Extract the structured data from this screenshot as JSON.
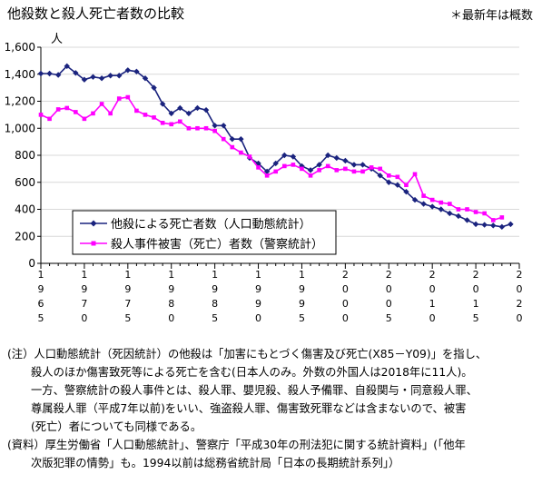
{
  "title": "他殺数と殺人死亡者数の比較",
  "note_estimate": "＊最新年は概数",
  "notes": {
    "note_lines": [
      "(注）人口動態統計（死因統計）の他殺は「加害にもとづく傷害及び死亡(X85－Y09)」を指し、",
      "殺人のほか傷害致死等による死亡を含む(日本人のみ。外数の外国人は2018年に11人)。",
      "一方、警察統計の殺人事件とは、殺人罪、嬰児殺、殺人予備罪、自殺関与・同意殺人罪、",
      "尊属殺人罪（平成7年以前)をいい、強盗殺人罪、傷害致死罪などは含まないので、被害",
      "(死亡）者についても同様である。"
    ],
    "source_lines": [
      "(資料）厚生労働省「人口動態統計」、警察庁「平成30年の刑法犯に関する統計資料」(「他年",
      "次版犯罪の情勢」も。1994以前は総務省統計局「日本の長期統計系列」）"
    ]
  },
  "colors": {
    "series1": "#1a237e",
    "series2": "#ff00ff"
  },
  "chart_data": {
    "type": "line",
    "title": "他殺数と殺人死亡者数の比較",
    "ylabel": "人",
    "xlabel": "",
    "ylim": [
      0,
      1600
    ],
    "yticks": [
      "0",
      "200",
      "400",
      "600",
      "800",
      "1,000",
      "1,200",
      "1,400",
      "1,600"
    ],
    "xlim": [
      1965,
      2020
    ],
    "xtick_labels": [
      {
        "year": 1965,
        "label": "1965"
      },
      {
        "year": 1970,
        "label": "1970"
      },
      {
        "year": 1975,
        "label": "1975"
      },
      {
        "year": 1980,
        "label": "1980"
      },
      {
        "year": 1985,
        "label": "1985"
      },
      {
        "year": 1990,
        "label": "1990"
      },
      {
        "year": 1995,
        "label": "1995"
      },
      {
        "year": 2000,
        "label": "2000"
      },
      {
        "year": 2005,
        "label": "2005"
      },
      {
        "year": 2010,
        "label": "2010"
      },
      {
        "year": 2015,
        "label": "2015"
      },
      {
        "year": 2020,
        "label": "2020"
      }
    ],
    "grid": "horizontal",
    "legend_position": "bottom-left",
    "series": [
      {
        "name": "他殺による死亡者数（人口動態統計）",
        "color": "#1a237e",
        "marker": "diamond",
        "x": [
          1965,
          1966,
          1967,
          1968,
          1969,
          1970,
          1971,
          1972,
          1973,
          1974,
          1975,
          1976,
          1977,
          1978,
          1979,
          1980,
          1981,
          1982,
          1983,
          1984,
          1985,
          1986,
          1987,
          1988,
          1989,
          1990,
          1991,
          1992,
          1993,
          1994,
          1995,
          1996,
          1997,
          1998,
          1999,
          2000,
          2001,
          2002,
          2003,
          2004,
          2005,
          2006,
          2007,
          2008,
          2009,
          2010,
          2011,
          2012,
          2013,
          2014,
          2015,
          2016,
          2017,
          2018,
          2019
        ],
        "values": [
          1405,
          1405,
          1395,
          1460,
          1410,
          1360,
          1380,
          1370,
          1390,
          1390,
          1430,
          1420,
          1370,
          1300,
          1180,
          1110,
          1150,
          1110,
          1150,
          1135,
          1020,
          1020,
          920,
          920,
          780,
          740,
          680,
          740,
          800,
          790,
          720,
          690,
          730,
          800,
          780,
          760,
          730,
          730,
          700,
          650,
          600,
          580,
          530,
          470,
          440,
          420,
          400,
          370,
          350,
          320,
          290,
          285,
          280,
          270,
          290
        ]
      },
      {
        "name": "殺人事件被害（死亡）者数（警察統計）",
        "color": "#ff00ff",
        "marker": "square",
        "x": [
          1965,
          1966,
          1967,
          1968,
          1969,
          1970,
          1971,
          1972,
          1973,
          1974,
          1975,
          1976,
          1977,
          1978,
          1979,
          1980,
          1981,
          1982,
          1983,
          1984,
          1985,
          1986,
          1987,
          1988,
          1989,
          1990,
          1991,
          1992,
          1993,
          1994,
          1995,
          1996,
          1997,
          1998,
          1999,
          2000,
          2001,
          2002,
          2003,
          2004,
          2005,
          2006,
          2007,
          2008,
          2009,
          2010,
          2011,
          2012,
          2013,
          2014,
          2015,
          2016,
          2017,
          2018
        ],
        "values": [
          1100,
          1070,
          1140,
          1150,
          1120,
          1070,
          1110,
          1180,
          1110,
          1220,
          1230,
          1130,
          1100,
          1080,
          1040,
          1030,
          1050,
          1000,
          1000,
          1000,
          980,
          920,
          860,
          820,
          790,
          710,
          650,
          680,
          720,
          730,
          700,
          650,
          690,
          720,
          690,
          700,
          680,
          680,
          710,
          700,
          650,
          640,
          580,
          660,
          500,
          470,
          450,
          440,
          400,
          400,
          380,
          370,
          320,
          340
        ]
      }
    ]
  }
}
